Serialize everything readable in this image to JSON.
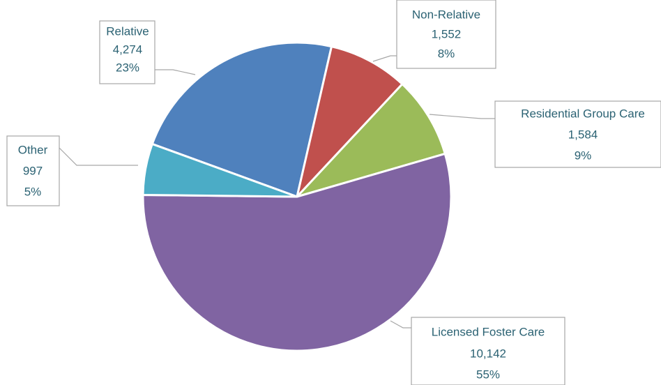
{
  "chart_data": {
    "type": "pie",
    "categories": [
      "Relative",
      "Non-Relative",
      "Residential Group Care",
      "Licensed Foster Care",
      "Other"
    ],
    "values": [
      4274,
      1552,
      1584,
      10142,
      997
    ],
    "value_labels": [
      "4,274",
      "1,552",
      "1,584",
      "10,142",
      "997"
    ],
    "percent_labels": [
      "23%",
      "8%",
      "9%",
      "55%",
      "5%"
    ],
    "colors": [
      "#4f81bd",
      "#c0504d",
      "#9bbb59",
      "#8064a2",
      "#4bacc6"
    ]
  }
}
